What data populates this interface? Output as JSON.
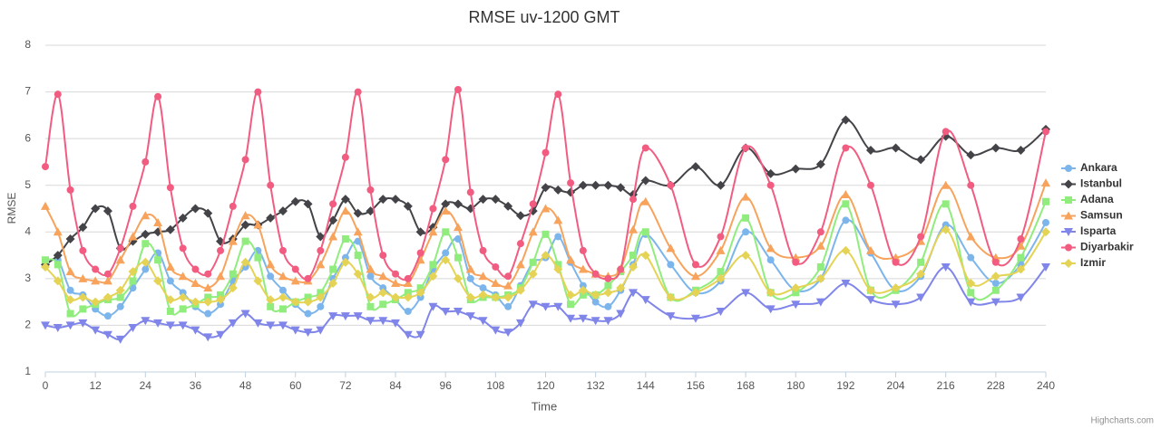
{
  "chart_data": {
    "type": "line",
    "title": "RMSE uv-1200 GMT",
    "x_label": "Time",
    "y_label": "RMSE",
    "credits": "Highcharts.com",
    "grid": true,
    "legend": "right",
    "xlim": [
      0,
      240
    ],
    "xticks": [
      0,
      12,
      24,
      36,
      48,
      60,
      72,
      84,
      96,
      108,
      120,
      132,
      144,
      156,
      168,
      180,
      192,
      204,
      216,
      228,
      240
    ],
    "ylim": [
      1,
      8
    ],
    "yticks": [
      1,
      2,
      3,
      4,
      5,
      6,
      7,
      8
    ],
    "x": [
      0,
      3,
      6,
      9,
      12,
      15,
      18,
      21,
      24,
      27,
      30,
      33,
      36,
      39,
      42,
      45,
      48,
      51,
      54,
      57,
      60,
      63,
      66,
      69,
      72,
      75,
      78,
      81,
      84,
      87,
      90,
      93,
      96,
      99,
      102,
      105,
      108,
      111,
      114,
      117,
      120,
      123,
      126,
      129,
      132,
      135,
      138,
      141,
      144,
      150,
      156,
      162,
      168,
      174,
      180,
      186,
      192,
      198,
      204,
      210,
      216,
      222,
      228,
      234,
      240
    ],
    "series": [
      {
        "name": "Ankara",
        "color": "#7cb5ec",
        "marker": "circle",
        "values": [
          3.3,
          3.4,
          2.75,
          2.65,
          2.35,
          2.2,
          2.4,
          2.8,
          3.2,
          3.55,
          2.95,
          2.7,
          2.4,
          2.25,
          2.45,
          2.95,
          3.25,
          3.6,
          3.05,
          2.75,
          2.45,
          2.25,
          2.4,
          3.0,
          3.45,
          3.8,
          3.05,
          2.8,
          2.55,
          2.3,
          2.6,
          3.2,
          3.55,
          3.85,
          3.0,
          2.8,
          2.65,
          2.4,
          2.85,
          3.35,
          3.45,
          3.9,
          3.35,
          2.85,
          2.5,
          2.4,
          2.75,
          3.3,
          3.95,
          3.3,
          2.7,
          2.95,
          4.0,
          3.4,
          2.75,
          3.0,
          4.25,
          3.55,
          2.75,
          3.05,
          4.15,
          3.45,
          2.9,
          3.3,
          4.2
        ]
      },
      {
        "name": "Istanbul",
        "color": "#434348",
        "marker": "diamond",
        "values": [
          3.3,
          3.5,
          3.85,
          4.1,
          4.5,
          4.45,
          3.65,
          3.8,
          3.95,
          4.0,
          4.05,
          4.3,
          4.5,
          4.4,
          3.8,
          3.85,
          4.15,
          4.15,
          4.3,
          4.45,
          4.65,
          4.6,
          3.9,
          4.25,
          4.7,
          4.4,
          4.45,
          4.7,
          4.7,
          4.55,
          4.0,
          4.1,
          4.6,
          4.6,
          4.5,
          4.7,
          4.7,
          4.55,
          4.35,
          4.45,
          4.95,
          4.9,
          4.85,
          5.0,
          5.0,
          5.0,
          4.95,
          4.8,
          5.1,
          5.0,
          5.4,
          5.0,
          5.8,
          5.25,
          5.35,
          5.45,
          6.4,
          5.75,
          5.8,
          5.55,
          6.05,
          5.65,
          5.8,
          5.75,
          6.2
        ]
      },
      {
        "name": "Adana",
        "color": "#90ed7d",
        "marker": "square",
        "values": [
          3.4,
          3.3,
          2.25,
          2.35,
          2.45,
          2.55,
          2.6,
          2.95,
          3.75,
          3.4,
          2.3,
          2.35,
          2.45,
          2.6,
          2.65,
          3.1,
          3.8,
          3.45,
          2.4,
          2.35,
          2.5,
          2.6,
          2.7,
          3.2,
          3.85,
          3.5,
          2.4,
          2.45,
          2.55,
          2.7,
          2.8,
          3.3,
          4.0,
          3.45,
          2.55,
          2.6,
          2.6,
          2.65,
          2.8,
          3.35,
          3.95,
          3.3,
          2.45,
          2.65,
          2.65,
          2.85,
          3.15,
          3.5,
          4.0,
          2.6,
          2.75,
          3.15,
          4.3,
          2.7,
          2.7,
          3.25,
          4.6,
          2.75,
          2.75,
          3.35,
          4.6,
          2.7,
          2.75,
          3.45,
          4.65
        ]
      },
      {
        "name": "Samsun",
        "color": "#f7a35c",
        "marker": "triangle",
        "values": [
          4.55,
          4.0,
          3.15,
          3.0,
          2.95,
          2.95,
          3.4,
          3.9,
          4.35,
          4.2,
          3.25,
          3.05,
          2.9,
          2.8,
          3.05,
          3.8,
          4.35,
          4.15,
          3.3,
          3.05,
          2.95,
          2.95,
          3.3,
          3.9,
          4.45,
          4.0,
          3.2,
          3.05,
          2.9,
          2.9,
          3.4,
          4.0,
          4.45,
          4.1,
          3.2,
          3.05,
          2.9,
          2.85,
          3.3,
          4.0,
          4.5,
          4.25,
          3.4,
          3.2,
          3.1,
          3.05,
          3.2,
          4.05,
          4.65,
          3.65,
          3.05,
          3.6,
          4.75,
          3.65,
          3.45,
          3.7,
          4.8,
          3.6,
          3.45,
          3.8,
          5.0,
          3.9,
          3.45,
          3.7,
          5.05
        ]
      },
      {
        "name": "Isparta",
        "color": "#8085e9",
        "marker": "triangle-down",
        "values": [
          2.0,
          1.95,
          2.0,
          2.05,
          1.9,
          1.8,
          1.7,
          1.95,
          2.1,
          2.05,
          2.0,
          2.0,
          1.9,
          1.75,
          1.8,
          2.05,
          2.25,
          2.05,
          2.0,
          2.0,
          1.9,
          1.85,
          1.9,
          2.2,
          2.2,
          2.2,
          2.1,
          2.1,
          2.05,
          1.8,
          1.8,
          2.4,
          2.3,
          2.3,
          2.2,
          2.1,
          1.9,
          1.85,
          2.05,
          2.45,
          2.4,
          2.4,
          2.15,
          2.15,
          2.1,
          2.1,
          2.25,
          2.7,
          2.55,
          2.2,
          2.15,
          2.3,
          2.7,
          2.35,
          2.45,
          2.5,
          2.9,
          2.55,
          2.45,
          2.6,
          3.25,
          2.5,
          2.5,
          2.6,
          3.25
        ]
      },
      {
        "name": "Diyarbakir",
        "color": "#f15c80",
        "marker": "circle",
        "values": [
          5.4,
          6.95,
          4.9,
          3.6,
          3.2,
          3.1,
          3.65,
          4.55,
          5.5,
          6.9,
          4.95,
          3.65,
          3.2,
          3.1,
          3.6,
          4.55,
          5.55,
          7.0,
          5.0,
          3.6,
          3.2,
          3.0,
          3.6,
          4.6,
          5.6,
          7.0,
          4.9,
          3.5,
          3.1,
          3.0,
          3.55,
          4.5,
          5.55,
          7.05,
          4.85,
          3.6,
          3.25,
          3.05,
          3.75,
          4.6,
          5.7,
          6.95,
          5.05,
          3.6,
          3.1,
          3.0,
          3.2,
          4.7,
          5.8,
          5.0,
          3.3,
          3.9,
          5.8,
          5.0,
          3.35,
          4.0,
          5.8,
          5.0,
          3.35,
          3.9,
          6.15,
          5.0,
          3.35,
          3.85,
          6.15
        ]
      },
      {
        "name": "Izmir",
        "color": "#e4d354",
        "marker": "diamond",
        "values": [
          3.25,
          2.95,
          2.55,
          2.6,
          2.5,
          2.6,
          2.75,
          3.15,
          3.35,
          2.95,
          2.55,
          2.6,
          2.5,
          2.5,
          2.55,
          2.8,
          3.35,
          2.95,
          2.55,
          2.6,
          2.5,
          2.5,
          2.6,
          2.9,
          3.35,
          3.1,
          2.6,
          2.7,
          2.6,
          2.6,
          2.7,
          3.05,
          3.4,
          3.0,
          2.6,
          2.65,
          2.6,
          2.6,
          2.75,
          3.1,
          3.5,
          3.2,
          2.65,
          2.75,
          2.65,
          2.7,
          2.8,
          3.25,
          3.5,
          2.6,
          2.7,
          3.0,
          3.5,
          2.7,
          2.8,
          3.0,
          3.6,
          2.75,
          2.8,
          3.1,
          4.05,
          2.9,
          3.05,
          3.2,
          4.0
        ]
      }
    ]
  }
}
